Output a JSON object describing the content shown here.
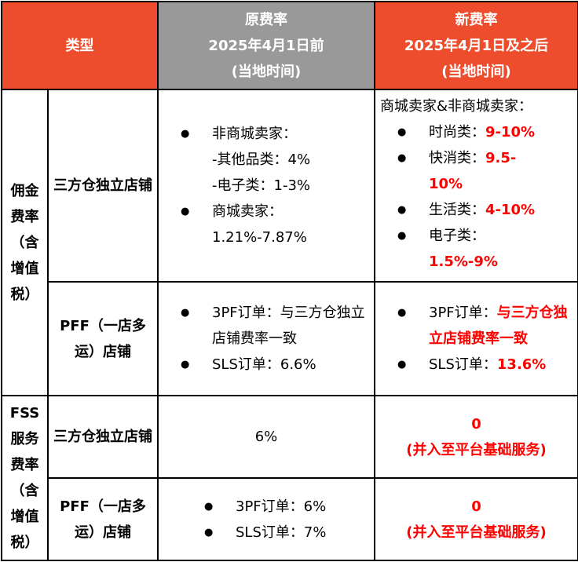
{
  "header": {
    "type": "类型",
    "old": [
      "原费率",
      "2025年4月1日前",
      "(当地时间)"
    ],
    "new": [
      "新费率",
      "2025年4月1日及之后",
      "(当地时间)"
    ]
  },
  "colors": {
    "header_accent": "#EE4D2D",
    "header_gray": "#999999",
    "highlight": "#FF0000"
  },
  "rows": {
    "commission": {
      "label": "佣金费率（含增值税）",
      "three_pf": {
        "label": "三方仓独立店铺",
        "old": {
          "b1": "非商城卖家：",
          "b1_l2": "-其他品类：4%",
          "b1_l3": "-电子类：1-3%",
          "b2": "商城卖家：",
          "b2_l2": "1.21%-7.87%"
        },
        "new": {
          "intro": "商城卖家&非商城卖家：",
          "items": [
            {
              "k": "时尚类：",
              "v": "9-10%"
            },
            {
              "k": "快消类：",
              "v": "9.5-10%"
            },
            {
              "k": "生活类：",
              "v": "4-10%"
            },
            {
              "k": "电子类：",
              "v": "1.5%-9%"
            }
          ]
        }
      },
      "pff": {
        "label": "PFF（一店多运）店铺",
        "old": {
          "b1": "3PF订单：与三方仓独立店铺费率一致",
          "b2": "SLS订单：6.6%"
        },
        "new": {
          "k1": "3PF订单：",
          "v1": "与三方仓独立店铺费率一致",
          "k2": "SLS订单：",
          "v2": "13.6%"
        }
      }
    },
    "fss": {
      "label": "FSS服务费率（含增值税）",
      "three_pf": {
        "label": "三方仓独立店铺",
        "old": "6%",
        "new_value": "0",
        "new_note": "(并入至平台基础服务)"
      },
      "pff": {
        "label": "PFF（一店多运）店铺",
        "old": {
          "b1": "3PF订单：6%",
          "b2": "SLS订单：7%"
        },
        "new_value": "0",
        "new_note": "(并入至平台基础服务)"
      }
    }
  }
}
